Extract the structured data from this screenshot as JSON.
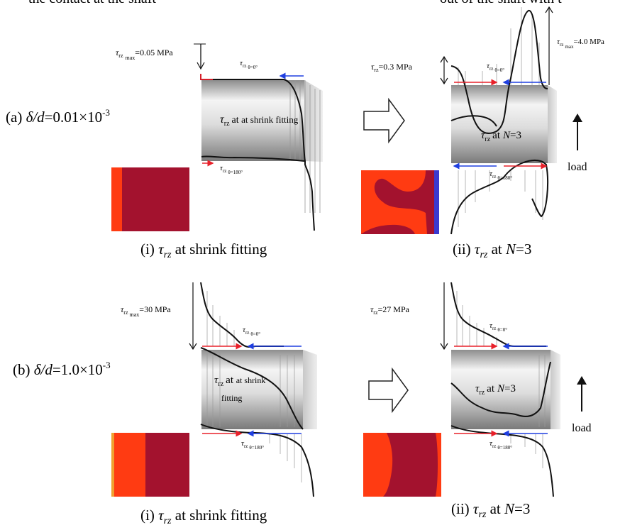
{
  "top_text": {
    "left": "the contact at the shaft",
    "right": "out of the shaft with t"
  },
  "rows": [
    {
      "label_prefix": "(a) ",
      "label_delta": "δ/d",
      "label_eq": "=0.01×10",
      "label_exp": "-3",
      "left": {
        "max_prefix": "τ",
        "max_sub": "rz",
        "max_sub2": "max",
        "max_value": "=0.05 MPa",
        "top_tag": "τ",
        "top_tag_sub": "rz",
        "top_tag_sub2": "θ=0°",
        "body_line1": "at shrink fitting",
        "body_tau": "τ",
        "body_sub": "rz",
        "bot_tag": "τ",
        "bot_tag_sub": "rz",
        "bot_tag_sub2": "θ=180°"
      },
      "right": {
        "val_prefix": "τ",
        "val_sub": "rz",
        "val_value": "=0.3 MPa",
        "max_prefix": "τ",
        "max_sub": "rz",
        "max_sub2": "max",
        "max_value": "=4.0 MPa",
        "top_tag": "τ",
        "top_tag_sub": "rz",
        "top_tag_sub2": "θ=0°",
        "body_tau": "τ",
        "body_sub": "rz",
        "body_at": "at",
        "body_n": "N",
        "body_eq": "=3",
        "bot_tag": "τ",
        "bot_tag_sub": "rz",
        "bot_tag_sub2": "θ=180°",
        "load": "load"
      },
      "caption_i": {
        "prefix": "(i) ",
        "tau": "τ",
        "sub": "rz",
        "rest": " at shrink fitting"
      },
      "caption_ii": {
        "prefix": "(ii) ",
        "tau": "τ",
        "sub": "rz",
        "at": " at ",
        "n": "N",
        "eq": "=3"
      }
    },
    {
      "label_prefix": "(b) ",
      "label_delta": "δ/d",
      "label_eq": "=1.0×10",
      "label_exp": "-3",
      "left": {
        "max_prefix": "τ",
        "max_sub": "rz",
        "max_sub2": "max",
        "max_value": "=30 MPa",
        "top_tag": "τ",
        "top_tag_sub": "rz",
        "top_tag_sub2": "θ=0°",
        "body_line1": "at shrink",
        "body_line2": "fitting",
        "body_tau": "τ",
        "body_sub": "rz",
        "bot_tag": "τ",
        "bot_tag_sub": "rz",
        "bot_tag_sub2": "θ=180°"
      },
      "right": {
        "val_prefix": "τ",
        "val_sub": "rz",
        "val_value": "=27 MPa",
        "top_tag": "τ",
        "top_tag_sub": "rz",
        "top_tag_sub2": "θ=0°",
        "body_tau": "τ",
        "body_sub": "rz",
        "body_at": "at",
        "body_n": "N",
        "body_eq": "=3",
        "bot_tag": "τ",
        "bot_tag_sub": "rz",
        "bot_tag_sub2": "θ=180°",
        "load": "load"
      },
      "caption_i": {
        "prefix": "(i) ",
        "tau": "τ",
        "sub": "rz",
        "rest": " at shrink fitting"
      },
      "caption_ii": {
        "prefix": "(ii) ",
        "tau": "τ",
        "sub": "rz",
        "at": " at ",
        "n": "N",
        "eq": "=3"
      }
    }
  ],
  "colors": {
    "dark_red": "#a3122e",
    "orange_red": "#ff3b12",
    "blue_arrow": "#1f3fe0",
    "red_arrow": "#e8202a",
    "blue_edge": "#3a3ad0"
  }
}
